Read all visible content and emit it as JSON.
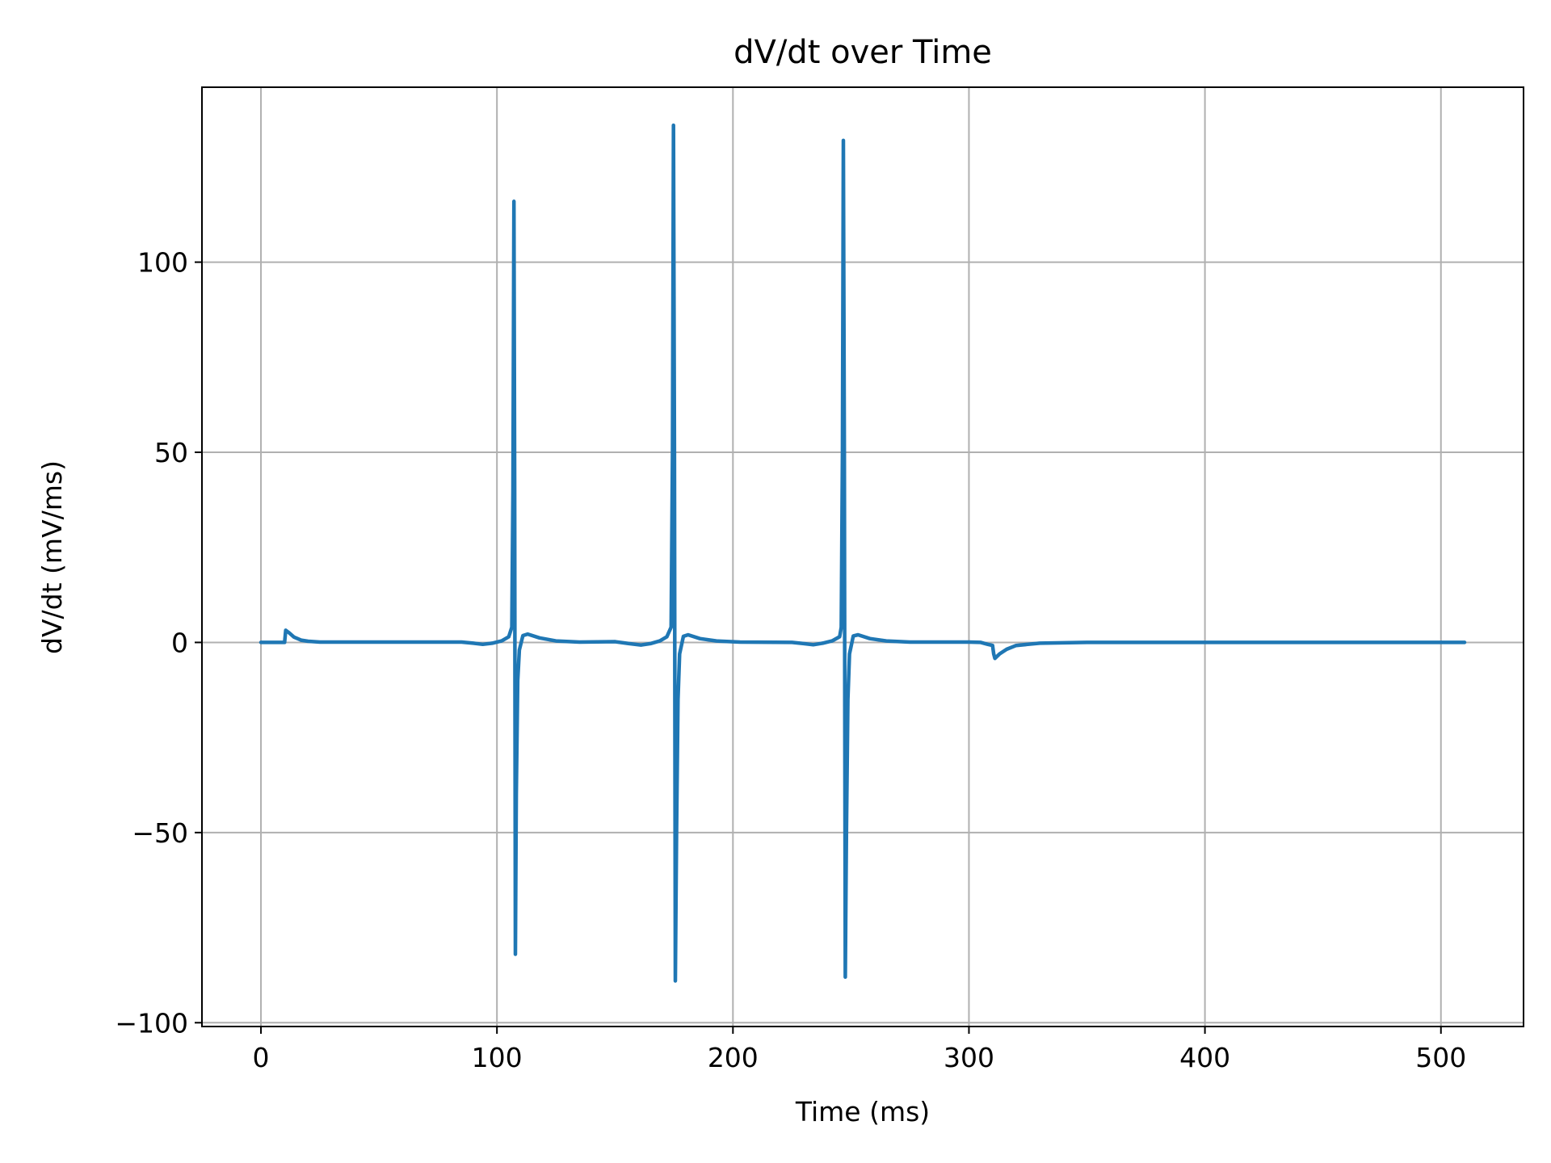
{
  "chart_data": {
    "type": "line",
    "title": "dV/dt over Time",
    "xlabel": "Time (ms)",
    "ylabel": "dV/dt (mV/ms)",
    "xlim": [
      -25,
      535
    ],
    "ylim": [
      -101,
      146
    ],
    "xticks": [
      0,
      100,
      200,
      300,
      400,
      500
    ],
    "yticks": [
      -100,
      -50,
      0,
      50,
      100
    ],
    "xtick_labels": [
      "0",
      "100",
      "200",
      "300",
      "400",
      "500"
    ],
    "ytick_labels": [
      "−100",
      "−50",
      "0",
      "50",
      "100"
    ],
    "grid": true,
    "line_color": "#1f77b4",
    "series": [
      {
        "x": [
          0,
          10,
          10.5,
          12,
          14,
          17,
          20,
          25,
          85,
          90,
          94,
          98,
          102,
          105,
          106.3,
          106.8,
          107.2,
          107.5,
          107.8,
          108.2,
          108.8,
          109.5,
          111,
          113,
          118,
          125,
          135,
          150,
          156,
          161,
          165,
          169,
          172,
          173.8,
          174.4,
          174.8,
          175.2,
          175.6,
          176.1,
          176.7,
          177.4,
          179,
          181,
          186,
          193,
          203,
          225,
          230,
          234,
          238,
          242,
          245.2,
          245.9,
          246.4,
          246.8,
          247.2,
          247.6,
          248.1,
          248.7,
          249.4,
          251,
          253,
          258,
          265,
          275,
          300,
          305,
          308,
          310,
          310.5,
          311,
          313,
          316,
          320,
          330,
          350,
          400,
          450,
          510
        ],
        "y": [
          0,
          0,
          3.2,
          2.5,
          1.4,
          0.6,
          0.3,
          0.1,
          0.1,
          -0.2,
          -0.5,
          -0.2,
          0.4,
          1.5,
          4,
          40,
          116,
          40,
          -82,
          -40,
          -10,
          -2,
          1.8,
          2.2,
          1.2,
          0.4,
          0.1,
          0.2,
          -0.3,
          -0.7,
          -0.3,
          0.4,
          1.5,
          4,
          50,
          136,
          50,
          -89,
          -50,
          -15,
          -3,
          1.6,
          2,
          1,
          0.4,
          0.1,
          0,
          -0.3,
          -0.6,
          -0.2,
          0.4,
          1.5,
          4,
          50,
          132,
          50,
          -88,
          -50,
          -15,
          -3,
          1.7,
          2,
          1,
          0.4,
          0.1,
          0.1,
          0,
          -0.5,
          -0.8,
          -3,
          -4.2,
          -3,
          -1.8,
          -0.8,
          -0.2,
          0,
          0,
          0,
          0
        ]
      }
    ]
  }
}
